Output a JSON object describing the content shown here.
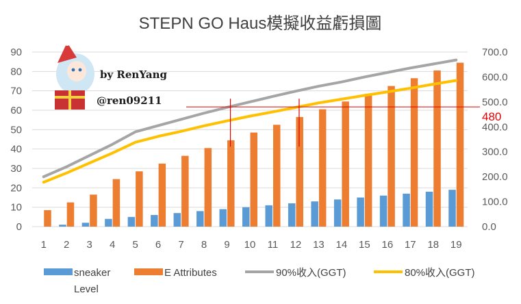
{
  "chart_data": {
    "type": "bar",
    "title": "STEPN GO Haus模擬收益虧損圖",
    "categories": [
      "1",
      "2",
      "3",
      "4",
      "5",
      "6",
      "7",
      "8",
      "9",
      "10",
      "11",
      "12",
      "13",
      "14",
      "15",
      "16",
      "17",
      "18",
      "19"
    ],
    "y_left": {
      "min": 0,
      "max": 90,
      "ticks": [
        "0",
        "10",
        "20",
        "30",
        "40",
        "50",
        "60",
        "70",
        "80",
        "90"
      ]
    },
    "y_right": {
      "min": 0,
      "max": 700,
      "ticks": [
        "0.0",
        "100.0",
        "200.0",
        "300.0",
        "400.0",
        "500.0",
        "600.0",
        "700.0"
      ]
    },
    "series": [
      {
        "name": "sneaker Level",
        "type": "bar",
        "axis": "left",
        "color": "#5b9bd5",
        "values": [
          0,
          1,
          2,
          4,
          5,
          6,
          7,
          8,
          9,
          10,
          11,
          12,
          13,
          14,
          15,
          16,
          17,
          18,
          19
        ]
      },
      {
        "name": "E Attributes",
        "type": "bar",
        "axis": "left",
        "color": "#ed7d31",
        "values": [
          8.5,
          12.5,
          16.5,
          24.5,
          28.5,
          32.5,
          36.5,
          40.5,
          44.5,
          48.5,
          52.5,
          56.5,
          60.5,
          64.5,
          68.5,
          72.5,
          76.5,
          80.5,
          84.5
        ]
      },
      {
        "name": "90%收入(GGT)",
        "type": "line",
        "axis": "right",
        "color": "#a5a5a5",
        "values": [
          200,
          240,
          285,
          330,
          380,
          405,
          430,
          455,
          478,
          500,
          522,
          543,
          563,
          580,
          600,
          618,
          636,
          652,
          668
        ]
      },
      {
        "name": "80%收入(GGT)",
        "type": "line",
        "axis": "right",
        "color": "#ffc000",
        "values": [
          178,
          215,
          255,
          295,
          338,
          362,
          382,
          404,
          424,
          443,
          460,
          478,
          496,
          511,
          526,
          540,
          555,
          571,
          586
        ]
      }
    ],
    "annotations": {
      "reference_line_value": 480,
      "reference_label": "480",
      "marked_levels": [
        "9",
        "12"
      ],
      "annotation_color": "#e00000"
    },
    "credit": {
      "by_line": "by RenYang",
      "handle": "@ren09211"
    },
    "legend": {
      "position": "bottom"
    }
  }
}
